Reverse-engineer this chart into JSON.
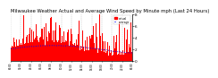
{
  "title": "Milwaukee Weather Actual and Average Wind Speed by Minute mph (Last 24 Hours)",
  "title_fontsize": 3.8,
  "n_points": 1440,
  "bar_color": "#FF0000",
  "line_color": "#0000FF",
  "background_color": "#FFFFFF",
  "grid_color": "#BBBBBB",
  "ylim": [
    0,
    8
  ],
  "xlim": [
    0,
    1440
  ],
  "legend_actual": "actual",
  "legend_average": "average",
  "seed": 42,
  "yticks": [
    0,
    2,
    4,
    6,
    8
  ],
  "ytick_labels": [
    "0",
    "2",
    "4",
    "6",
    "8"
  ]
}
